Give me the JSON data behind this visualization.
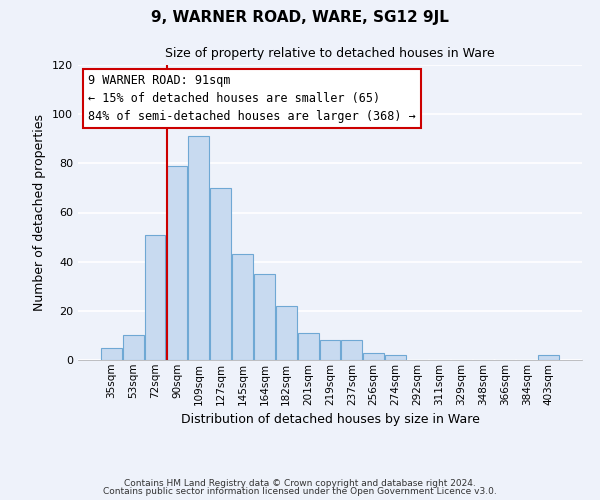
{
  "title": "9, WARNER ROAD, WARE, SG12 9JL",
  "subtitle": "Size of property relative to detached houses in Ware",
  "xlabel": "Distribution of detached houses by size in Ware",
  "ylabel": "Number of detached properties",
  "bar_labels": [
    "35sqm",
    "53sqm",
    "72sqm",
    "90sqm",
    "109sqm",
    "127sqm",
    "145sqm",
    "164sqm",
    "182sqm",
    "201sqm",
    "219sqm",
    "237sqm",
    "256sqm",
    "274sqm",
    "292sqm",
    "311sqm",
    "329sqm",
    "348sqm",
    "366sqm",
    "384sqm",
    "403sqm"
  ],
  "bar_values": [
    5,
    10,
    51,
    79,
    91,
    70,
    43,
    35,
    22,
    11,
    8,
    8,
    3,
    2,
    0,
    0,
    0,
    0,
    0,
    0,
    2
  ],
  "bar_color": "#c8daf0",
  "bar_edge_color": "#6fa8d4",
  "vline_index": 3,
  "vline_color": "#cc0000",
  "ylim": [
    0,
    120
  ],
  "yticks": [
    0,
    20,
    40,
    60,
    80,
    100,
    120
  ],
  "annotation_title": "9 WARNER ROAD: 91sqm",
  "annotation_line1": "← 15% of detached houses are smaller (65)",
  "annotation_line2": "84% of semi-detached houses are larger (368) →",
  "annotation_box_color": "#ffffff",
  "annotation_box_edge": "#cc0000",
  "footer_line1": "Contains HM Land Registry data © Crown copyright and database right 2024.",
  "footer_line2": "Contains public sector information licensed under the Open Government Licence v3.0.",
  "background_color": "#eef2fa"
}
